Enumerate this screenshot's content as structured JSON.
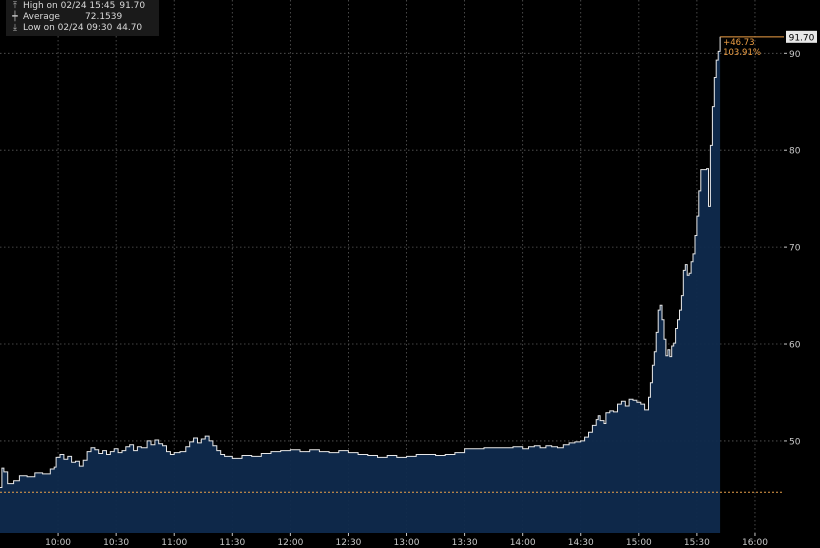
{
  "chart_data": {
    "type": "line",
    "title": "",
    "xlabel": "",
    "ylabel": "",
    "ylim": [
      40.5,
      95.5
    ],
    "x_range_minutes": [
      570,
      975
    ],
    "yticks": [
      50,
      60,
      70,
      80,
      90
    ],
    "xticks": [
      {
        "label": "10:00",
        "t": 600
      },
      {
        "label": "10:30",
        "t": 630
      },
      {
        "label": "11:00",
        "t": 660
      },
      {
        "label": "11:30",
        "t": 690
      },
      {
        "label": "12:00",
        "t": 720
      },
      {
        "label": "12:30",
        "t": 750
      },
      {
        "label": "13:00",
        "t": 780
      },
      {
        "label": "13:30",
        "t": 810
      },
      {
        "label": "14:00",
        "t": 840
      },
      {
        "label": "14:30",
        "t": 870
      },
      {
        "label": "15:00",
        "t": 900
      },
      {
        "label": "15:30",
        "t": 930
      },
      {
        "label": "16:00",
        "t": 960
      }
    ],
    "grid": true,
    "series": [
      {
        "points": [
          [
            570,
            45.2
          ],
          [
            571,
            47.2
          ],
          [
            572,
            46.8
          ],
          [
            574,
            45.6
          ],
          [
            577,
            45.9
          ],
          [
            580,
            46.4
          ],
          [
            584,
            46.3
          ],
          [
            588,
            46.7
          ],
          [
            592,
            46.6
          ],
          [
            596,
            47.1
          ],
          [
            598,
            47.3
          ],
          [
            599,
            48.3
          ],
          [
            601,
            48.6
          ],
          [
            603,
            48.1
          ],
          [
            605,
            48.4
          ],
          [
            607,
            47.8
          ],
          [
            609,
            47.9
          ],
          [
            611,
            47.4
          ],
          [
            613,
            48.0
          ],
          [
            615,
            48.9
          ],
          [
            617,
            49.3
          ],
          [
            619,
            49.1
          ],
          [
            621,
            48.7
          ],
          [
            623,
            49.0
          ],
          [
            625,
            48.6
          ],
          [
            627,
            48.9
          ],
          [
            629,
            49.2
          ],
          [
            631,
            48.8
          ],
          [
            633,
            49.0
          ],
          [
            635,
            49.4
          ],
          [
            637,
            49.6
          ],
          [
            639,
            49.0
          ],
          [
            641,
            49.4
          ],
          [
            643,
            49.3
          ],
          [
            646,
            50.0
          ],
          [
            648,
            49.6
          ],
          [
            650,
            50.1
          ],
          [
            652,
            49.7
          ],
          [
            654,
            49.5
          ],
          [
            656,
            48.9
          ],
          [
            658,
            48.6
          ],
          [
            660,
            48.8
          ],
          [
            663,
            48.9
          ],
          [
            666,
            49.4
          ],
          [
            668,
            49.9
          ],
          [
            670,
            50.3
          ],
          [
            672,
            49.8
          ],
          [
            674,
            50.2
          ],
          [
            676,
            50.5
          ],
          [
            678,
            50.0
          ],
          [
            680,
            49.5
          ],
          [
            682,
            49.0
          ],
          [
            684,
            48.6
          ],
          [
            686,
            48.4
          ],
          [
            690,
            48.2
          ],
          [
            695,
            48.5
          ],
          [
            700,
            48.4
          ],
          [
            705,
            48.7
          ],
          [
            710,
            48.9
          ],
          [
            715,
            49.0
          ],
          [
            720,
            49.1
          ],
          [
            725,
            48.9
          ],
          [
            730,
            49.1
          ],
          [
            735,
            48.9
          ],
          [
            740,
            48.8
          ],
          [
            745,
            49.0
          ],
          [
            750,
            48.8
          ],
          [
            755,
            48.6
          ],
          [
            760,
            48.5
          ],
          [
            765,
            48.3
          ],
          [
            770,
            48.5
          ],
          [
            775,
            48.3
          ],
          [
            780,
            48.4
          ],
          [
            785,
            48.6
          ],
          [
            790,
            48.6
          ],
          [
            795,
            48.5
          ],
          [
            800,
            48.6
          ],
          [
            805,
            48.8
          ],
          [
            810,
            49.2
          ],
          [
            815,
            49.2
          ],
          [
            820,
            49.3
          ],
          [
            825,
            49.3
          ],
          [
            830,
            49.3
          ],
          [
            835,
            49.4
          ],
          [
            840,
            49.2
          ],
          [
            843,
            49.4
          ],
          [
            846,
            49.5
          ],
          [
            849,
            49.3
          ],
          [
            852,
            49.5
          ],
          [
            855,
            49.4
          ],
          [
            858,
            49.3
          ],
          [
            861,
            49.6
          ],
          [
            864,
            49.8
          ],
          [
            867,
            49.9
          ],
          [
            870,
            50.0
          ],
          [
            872,
            50.4
          ],
          [
            874,
            50.9
          ],
          [
            876,
            51.6
          ],
          [
            878,
            52.2
          ],
          [
            879,
            52.6
          ],
          [
            880,
            52.1
          ],
          [
            882,
            51.8
          ],
          [
            883,
            52.9
          ],
          [
            885,
            53.1
          ],
          [
            887,
            53.0
          ],
          [
            889,
            53.8
          ],
          [
            891,
            54.1
          ],
          [
            893,
            53.6
          ],
          [
            895,
            54.3
          ],
          [
            897,
            54.2
          ],
          [
            899,
            54.0
          ],
          [
            901,
            53.8
          ],
          [
            903,
            53.2
          ],
          [
            905,
            54.5
          ],
          [
            906,
            56.0
          ],
          [
            907,
            57.8
          ],
          [
            908,
            59.2
          ],
          [
            909,
            61.2
          ],
          [
            910,
            63.5
          ],
          [
            911,
            64.0
          ],
          [
            912,
            62.5
          ],
          [
            913,
            60.5
          ],
          [
            914,
            58.8
          ],
          [
            915,
            59.4
          ],
          [
            916,
            58.7
          ],
          [
            917,
            59.8
          ],
          [
            918,
            60.1
          ],
          [
            919,
            61.6
          ],
          [
            920,
            62.5
          ],
          [
            921,
            63.5
          ],
          [
            922,
            65.0
          ],
          [
            923,
            67.6
          ],
          [
            924,
            68.2
          ],
          [
            925,
            67.1
          ],
          [
            926,
            67.3
          ],
          [
            927,
            68.5
          ],
          [
            928,
            69.3
          ],
          [
            929,
            71.2
          ],
          [
            930,
            73.2
          ],
          [
            931,
            75.8
          ],
          [
            932,
            78.0
          ],
          [
            935,
            78.1
          ],
          [
            936,
            74.2
          ],
          [
            937,
            80.5
          ],
          [
            938,
            84.5
          ],
          [
            939,
            87.5
          ],
          [
            940,
            89.3
          ],
          [
            941,
            90.2
          ],
          [
            942,
            91.7
          ]
        ]
      }
    ],
    "last_value": 91.7,
    "last_value_label": "91.70",
    "change_label": "+46.73",
    "change_pct_label": "103.91%",
    "reference_value": 44.7
  },
  "legend": [
    {
      "icon": "high-arrow",
      "label": "High on 02/24 15:45",
      "value": "91.70"
    },
    {
      "icon": "average-line",
      "label": "Average",
      "value": "72.1539"
    },
    {
      "icon": "low-arrow",
      "label": "Low on 02/24 09:30",
      "value": "44.70"
    }
  ],
  "colors": {
    "background": "#000000",
    "area_fill": "#0f2a4d",
    "line": "#e8e8e8",
    "grid": "#5a5a5a",
    "axis_text": "#c8c8c8",
    "last_value_tag_bg": "#e8e8e8",
    "last_value_tag_text": "#000000",
    "change_text": "#f0a045",
    "reference_line": "#e8a04a"
  }
}
